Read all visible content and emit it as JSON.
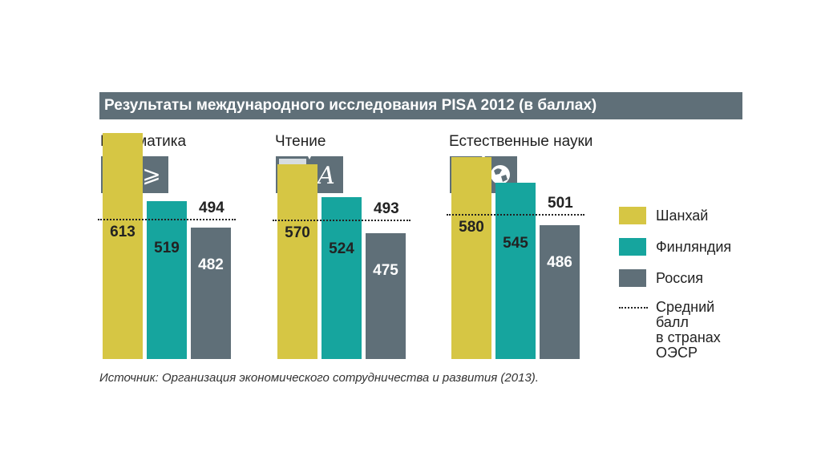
{
  "title": "Результаты международного исследования PISA 2012 (в баллах)",
  "colors": {
    "shanghai": "#d6c644",
    "finland": "#16a59e",
    "russia": "#5f6f78",
    "title_bg": "#5f6f78"
  },
  "chart_data": {
    "type": "bar",
    "title": "Результаты международного исследования PISA 2012 (в баллах)",
    "categories": [
      "Математика",
      "Чтение",
      "Естественные науки"
    ],
    "icons": [
      "math-geq-icon",
      "letter-a-icon",
      "globe-icon"
    ],
    "icon_glyphs": [
      "⩾",
      "A",
      "🌐"
    ],
    "series": [
      {
        "name": "Шанхай",
        "values": [
          613,
          570,
          580
        ]
      },
      {
        "name": "Финляндия",
        "values": [
          519,
          524,
          545
        ]
      },
      {
        "name": "Россия",
        "values": [
          482,
          475,
          486
        ]
      }
    ],
    "oecd_average": {
      "name": "Средний балл в странах ОЭСР",
      "values": [
        494,
        493,
        501
      ]
    },
    "value_labels": [
      [
        "613",
        "519",
        "482"
      ],
      [
        "570",
        "524",
        "475"
      ],
      [
        "580",
        "545",
        "486"
      ]
    ],
    "average_labels": [
      "494",
      "493",
      "501"
    ],
    "ylim": [
      300,
      650
    ]
  },
  "legend": {
    "items": [
      "Шанхай",
      "Финляндия",
      "Россия"
    ],
    "avg_lines": [
      "Средний",
      "балл",
      "в странах",
      "ОЭСР"
    ]
  },
  "source": "Источник: Организация экономического сотрудничества и развития (2013)."
}
